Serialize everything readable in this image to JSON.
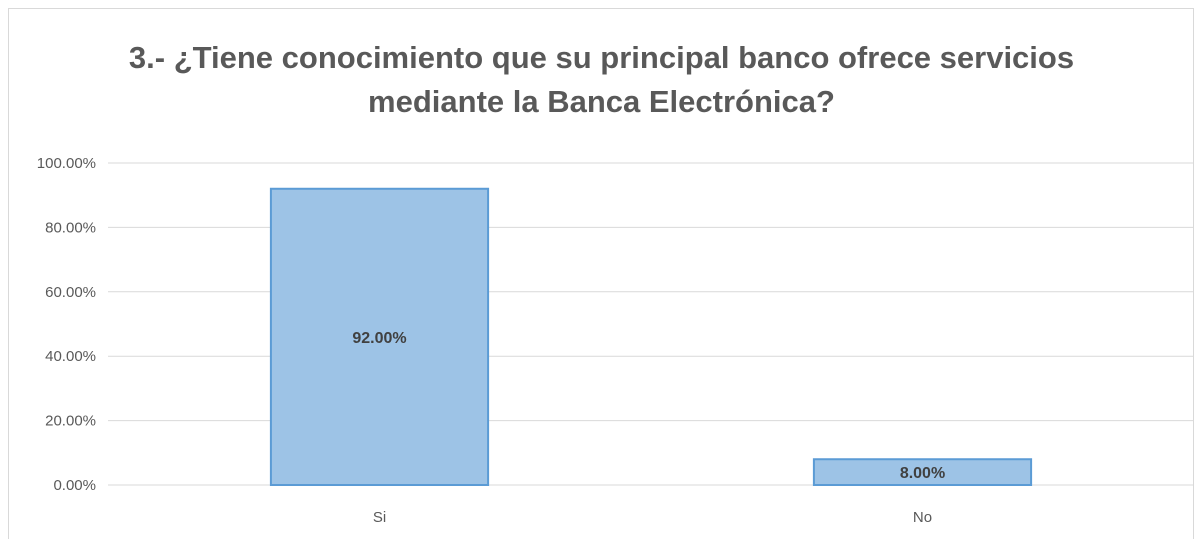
{
  "chart_data": {
    "type": "bar",
    "title_lines": [
      "3.- ¿Tiene conocimiento que su principal banco ofrece servicios",
      "mediante la Banca Electrónica?"
    ],
    "categories": [
      "Si",
      "No"
    ],
    "values": [
      92.0,
      8.0
    ],
    "data_labels": [
      "92.00%",
      "8.00%"
    ],
    "ylim": [
      0,
      100
    ],
    "yticks": [
      0,
      20,
      40,
      60,
      80,
      100
    ],
    "ytick_labels": [
      "0.00%",
      "20.00%",
      "40.00%",
      "60.00%",
      "80.00%",
      "100.00%"
    ],
    "grid": true,
    "legend": "none",
    "colors": {
      "bar_fill": "#9dc3e6",
      "bar_stroke": "#5b9bd5",
      "grid": "#d9d9d9"
    }
  }
}
